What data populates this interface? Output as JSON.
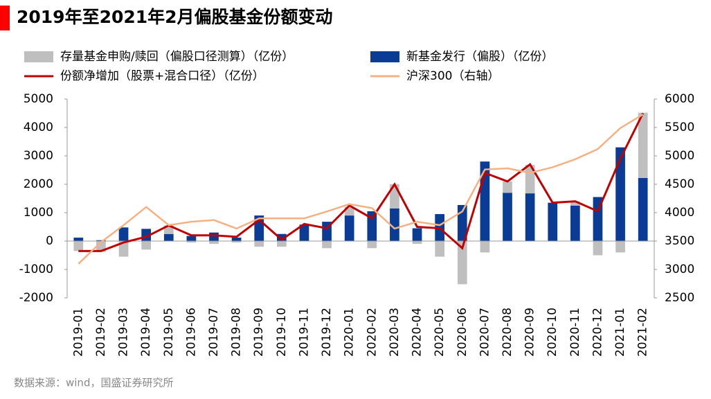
{
  "chart_data": {
    "type": "bar",
    "title": "2019年至2021年2月偏股基金份额变动",
    "source": "数据来源：wind，国盛证券研究所",
    "categories": [
      "2019-01",
      "2019-02",
      "2019-03",
      "2019-04",
      "2019-05",
      "2019-06",
      "2019-07",
      "2019-08",
      "2019-09",
      "2019-10",
      "2019-11",
      "2019-12",
      "2020-01",
      "2020-02",
      "2020-03",
      "2020-04",
      "2020-05",
      "2020-06",
      "2020-07",
      "2020-08",
      "2020-09",
      "2020-10",
      "2020-11",
      "2020-12",
      "2021-01",
      "2021-02"
    ],
    "series": [
      {
        "name": "存量基金申购/赎回（偏股口径测算）（亿份）",
        "type": "bar",
        "color": "#bfbfbf",
        "values": [
          -350,
          -380,
          -550,
          -300,
          300,
          -50,
          -100,
          -50,
          -200,
          -200,
          0,
          -250,
          300,
          -250,
          850,
          -100,
          -550,
          -1520,
          -400,
          400,
          1000,
          0,
          150,
          -500,
          -400,
          2300
        ]
      },
      {
        "name": "新基金发行（偏股）（亿份）",
        "type": "bar",
        "color": "#0a3c96",
        "values": [
          120,
          30,
          480,
          430,
          250,
          180,
          300,
          120,
          900,
          250,
          580,
          680,
          900,
          1050,
          1150,
          450,
          950,
          1270,
          2800,
          1700,
          1680,
          1350,
          1250,
          1550,
          3300,
          2220
        ]
      },
      {
        "name": "份额净增加（股票+混合口径）（亿份）",
        "type": "line",
        "color": "#c00000",
        "values": [
          -350,
          -350,
          -50,
          150,
          550,
          200,
          200,
          150,
          750,
          50,
          600,
          450,
          1250,
          800,
          2000,
          500,
          450,
          -250,
          2400,
          2100,
          2700,
          1350,
          1400,
          1050,
          2900,
          4500
        ]
      },
      {
        "name": "沪深300（右轴）",
        "type": "line",
        "axis": "y2",
        "color": "#f4b183",
        "values": [
          3100,
          3480,
          3780,
          4100,
          3780,
          3840,
          3870,
          3720,
          3900,
          3900,
          3900,
          4020,
          4150,
          4080,
          3720,
          3840,
          3780,
          4020,
          4760,
          4780,
          4700,
          4800,
          4940,
          5120,
          5490,
          5730
        ]
      }
    ],
    "ylim": [
      -2000,
      5000
    ],
    "yticks": [
      -2000,
      -1000,
      0,
      1000,
      2000,
      3000,
      4000,
      5000
    ],
    "y2lim": [
      2500,
      6000
    ],
    "y2ticks": [
      2500,
      3000,
      3500,
      4000,
      4500,
      5000,
      5500,
      6000
    ]
  }
}
